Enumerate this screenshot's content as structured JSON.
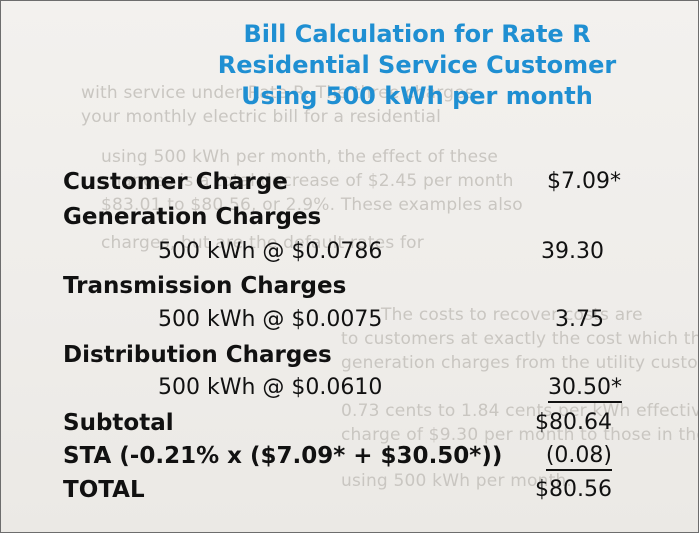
{
  "title": {
    "line1": "Bill Calculation for Rate R",
    "line2": "Residential Service Customer",
    "line3": "Using 500 kWh per month"
  },
  "rows": {
    "customer_charge": {
      "label": "Customer Charge",
      "amount": "$7.09*"
    },
    "generation": {
      "label": "Generation Charges",
      "detail": "500 kWh @ $0.0786",
      "amount": "39.30"
    },
    "transmission": {
      "label": "Transmission Charges",
      "detail": "500 kWh @ $0.0075",
      "amount": "3.75"
    },
    "distribution": {
      "label": "Distribution Charges",
      "detail": "500 kWh @ $0.0610",
      "amount": "30.50*"
    },
    "subtotal": {
      "label": "Subtotal",
      "amount": "$80.64"
    },
    "sta": {
      "label": "STA (-0.21% x ($7.09* + $30.50*))",
      "amount": "(0.08)"
    },
    "total": {
      "label": "TOTAL",
      "amount": "$80.56"
    }
  },
  "colors": {
    "title": "#1f8fd2",
    "text": "#111111",
    "background": "#f1efec"
  }
}
